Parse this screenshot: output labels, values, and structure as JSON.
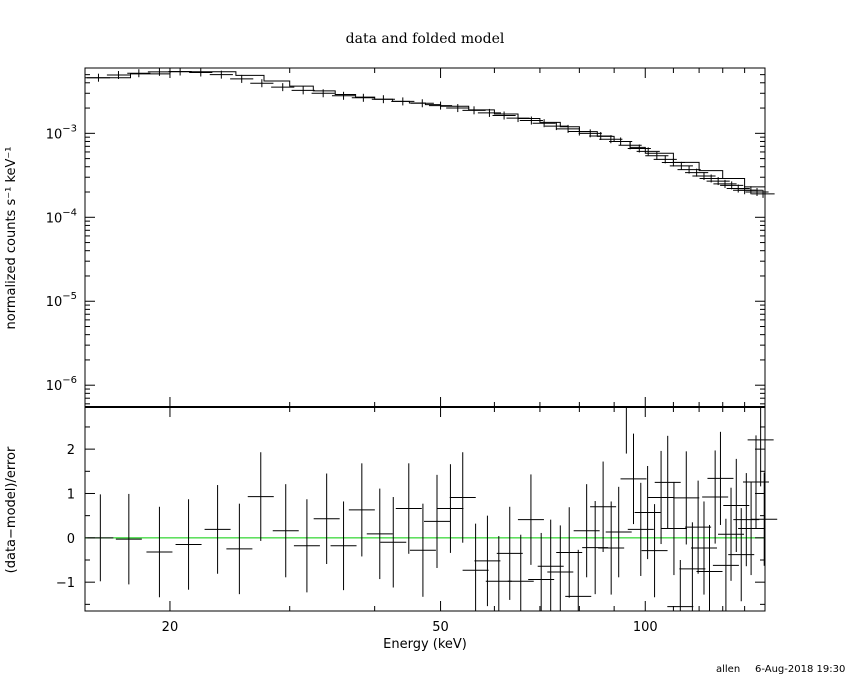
{
  "chart_data": [
    {
      "type": "line",
      "title": "data and folded model",
      "ylabel": "normalized counts s⁻¹ keV⁻¹",
      "xscale": "log",
      "yscale": "log",
      "xlim": [
        15,
        150
      ],
      "ylim": [
        5.5e-07,
        0.006
      ],
      "ytick_values": [
        1e-06,
        1e-05,
        0.0001,
        0.001
      ],
      "ytick_labels": [
        {
          "base": "10",
          "exp": "−6"
        },
        {
          "base": "10",
          "exp": "−5"
        },
        {
          "base": "10",
          "exp": "−4"
        },
        {
          "base": "10",
          "exp": "−3"
        }
      ],
      "series": [
        {
          "style": "step-model",
          "x": [
            15.0,
            17.5,
            20.0,
            22.5,
            25.0,
            27.5,
            30.0,
            32.5,
            35.0,
            37.5,
            40.0,
            42.5,
            45.0,
            47.5,
            50.0,
            55.0,
            60.0,
            65.0,
            70.0,
            75.0,
            80.0,
            85.0,
            90.0,
            95.0,
            100.0,
            110.0,
            120.0,
            130.0,
            140.0,
            150.0
          ],
          "y": [
            0.0046,
            0.0051,
            0.0054,
            0.0054,
            0.0049,
            0.0042,
            0.00365,
            0.0032,
            0.0029,
            0.0027,
            0.00255,
            0.0024,
            0.0023,
            0.0022,
            0.0021,
            0.0019,
            0.0017,
            0.0015,
            0.00135,
            0.0012,
            0.00105,
            0.00092,
            0.0008,
            0.00068,
            0.00058,
            0.00045,
            0.00036,
            0.00029,
            0.00023,
            0.00018
          ]
        },
        {
          "style": "data-crosses",
          "x": [
            15.7,
            16.8,
            18.0,
            19.3,
            20.7,
            22.2,
            23.8,
            25.5,
            27.3,
            29.3,
            31.4,
            33.6,
            36.0,
            38.5,
            41.2,
            44.0,
            47.0,
            50.0,
            53.0,
            56.0,
            59.0,
            62.0,
            65.0,
            68.0,
            71.0,
            74.0,
            77.0,
            80.0,
            83.0,
            86.0,
            89.0,
            92.0,
            95.0,
            98.0,
            101.0,
            104.0,
            107.0,
            110.0,
            113.0,
            116.0,
            119.0,
            122.0,
            125.0,
            128.0,
            131.0,
            134.0,
            137.0,
            140.0,
            143.0,
            146.0,
            149.0
          ],
          "y": [
            0.0046,
            0.00495,
            0.0052,
            0.0054,
            0.00545,
            0.0053,
            0.005,
            0.00445,
            0.00395,
            0.00355,
            0.00325,
            0.003,
            0.0028,
            0.00265,
            0.00255,
            0.0024,
            0.00228,
            0.00214,
            0.002,
            0.00188,
            0.00175,
            0.00163,
            0.00152,
            0.00142,
            0.00132,
            0.00122,
            0.00113,
            0.00105,
            0.001,
            0.00093,
            0.00085,
            0.0008,
            0.00072,
            0.00066,
            0.00061,
            0.00054,
            0.00049,
            0.00045,
            0.00041,
            0.00037,
            0.00034,
            0.00031,
            0.00029,
            0.00027,
            0.00025,
            0.00024,
            0.00022,
            0.00021,
            0.00021,
            0.0002,
            0.00019
          ]
        }
      ]
    },
    {
      "type": "scatter",
      "xlabel": "Energy (keV)",
      "ylabel": "(data−model)/error",
      "xscale": "log",
      "xlim": [
        15,
        150
      ],
      "ylim": [
        -1.65,
        2.95
      ],
      "xtick_values": [
        20,
        50,
        100
      ],
      "ytick_values": [
        -1,
        0,
        1,
        2
      ],
      "reference_line": {
        "y": 0,
        "color": "#00cc00"
      },
      "series": [
        {
          "style": "data-crosses",
          "x": [
            15.8,
            17.4,
            19.3,
            21.3,
            23.5,
            25.3,
            27.2,
            29.6,
            31.8,
            34.0,
            36.0,
            38.3,
            40.7,
            42.6,
            44.9,
            47.1,
            49.4,
            51.7,
            53.9,
            56.3,
            58.6,
            60.9,
            63.2,
            65.6,
            67.9,
            70.3,
            72.6,
            75.0,
            77.3,
            79.7,
            82.0,
            84.4,
            86.7,
            89.1,
            91.4,
            93.8,
            96.1,
            98.5,
            100.8,
            103.2,
            105.5,
            107.9,
            110.2,
            112.6,
            114.9,
            117.3,
            119.6,
            122.0,
            124.3,
            126.7,
            129.0,
            131.4,
            133.7,
            136.1,
            138.4,
            140.8,
            143.1,
            145.5,
            147.8,
            149.6
          ],
          "y": [
            0.0,
            -0.03,
            -0.32,
            -0.15,
            0.19,
            -0.25,
            0.93,
            0.16,
            -0.18,
            0.43,
            -0.18,
            0.63,
            0.09,
            -0.1,
            0.66,
            -0.28,
            0.37,
            0.66,
            0.91,
            -0.73,
            -0.52,
            -0.98,
            -0.35,
            -0.98,
            0.41,
            -0.94,
            -0.64,
            -0.77,
            -0.33,
            -1.32,
            0.16,
            -0.22,
            0.7,
            -0.23,
            0.13,
            2.95,
            1.33,
            0.19,
            0.57,
            -0.29,
            0.91,
            1.25,
            0.21,
            -1.55,
            0.9,
            -0.7,
            0.24,
            -0.23,
            -0.76,
            0.92,
            1.34,
            -0.62,
            0.08,
            0.73,
            -0.38,
            0.41,
            0.21,
            1.26,
            2.21,
            0.42
          ],
          "err": [
            0.98,
            1.02,
            1.02,
            1.02,
            1.0,
            1.02,
            1.0,
            1.05,
            1.05,
            1.02,
            1.0,
            1.05,
            1.02,
            1.02,
            1.02,
            1.05,
            1.05,
            1.0,
            1.02,
            1.05,
            1.02,
            1.02,
            1.05,
            1.05,
            1.02,
            1.05,
            1.05,
            1.05,
            1.02,
            1.05,
            1.05,
            1.05,
            1.02,
            1.05,
            1.02,
            1.05,
            1.02,
            1.05,
            1.05,
            1.05,
            1.05,
            1.05,
            1.05,
            1.05,
            1.05,
            1.05,
            1.05,
            1.05,
            1.05,
            1.05,
            1.05,
            1.05,
            1.05,
            1.05,
            1.05,
            1.05,
            1.05,
            1.05,
            1.05,
            1.05
          ]
        }
      ]
    }
  ],
  "footer": {
    "user": "allen",
    "timestamp": "6-Aug-2018 19:30"
  }
}
